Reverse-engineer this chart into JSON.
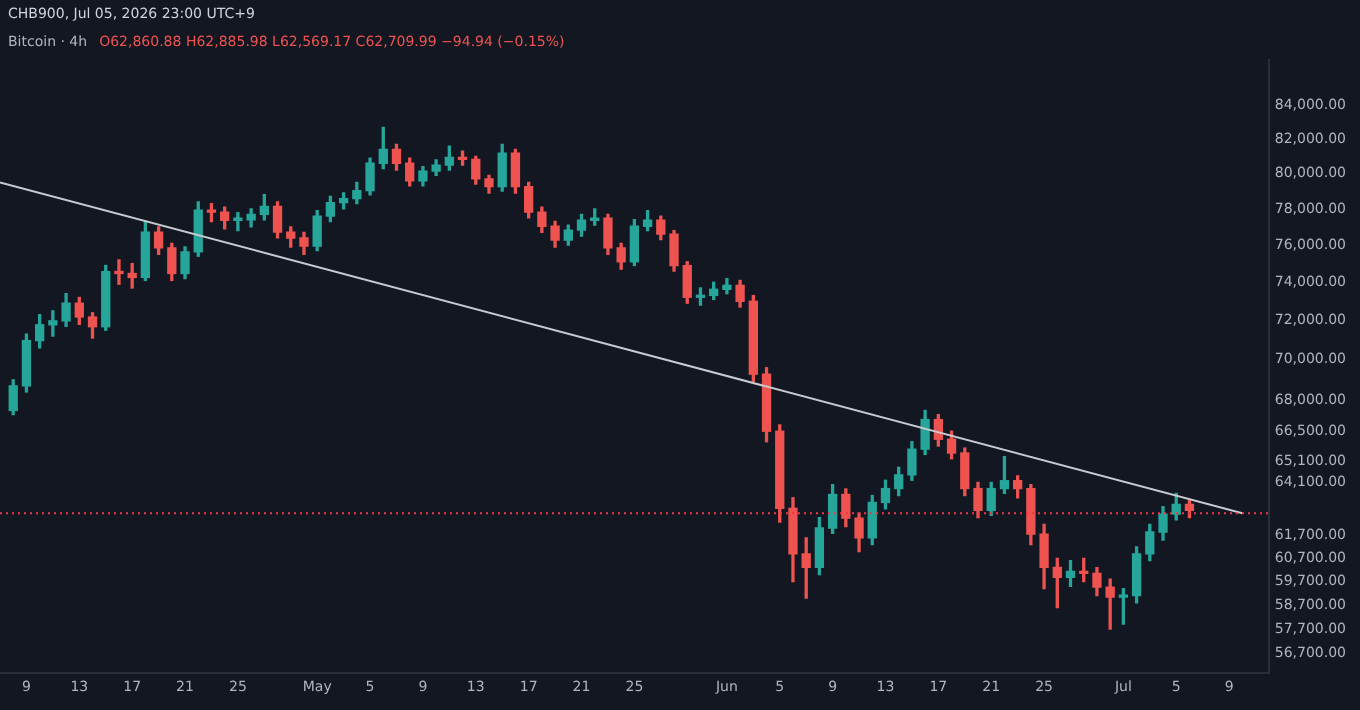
{
  "chart_data": {
    "type": "candlestick",
    "title": "Bitcoin · 4h",
    "subtitle": "O62,860.88 H62,885.98 L62,569.17 C62,709.99 −94.94 (−0.15%)",
    "annotations": [
      "CHB900, Jul 05, 2026 23:00 UTC+9"
    ],
    "series": [
      {
        "x": [
          "2026-04-08",
          "2026-04-09",
          "2026-04-10",
          "2026-04-11",
          "2026-04-12",
          "2026-04-13",
          "2026-04-14",
          "2026-04-15",
          "2026-04-16",
          "2026-04-17",
          "2026-04-18",
          "2026-04-19",
          "2026-04-20",
          "2026-04-21",
          "2026-04-22",
          "2026-04-23",
          "2026-04-24",
          "2026-04-25",
          "2026-04-26",
          "2026-04-27",
          "2026-04-28",
          "2026-04-29",
          "2026-04-30",
          "2026-05-01",
          "2026-05-02",
          "2026-05-03",
          "2026-05-04",
          "2026-05-05",
          "2026-05-06",
          "2026-05-07",
          "2026-05-08",
          "2026-05-09",
          "2026-05-10",
          "2026-05-11",
          "2026-05-12",
          "2026-05-13",
          "2026-05-14",
          "2026-05-15",
          "2026-05-16",
          "2026-05-17",
          "2026-05-18",
          "2026-05-19",
          "2026-05-20",
          "2026-05-21",
          "2026-05-22",
          "2026-05-23",
          "2026-05-24",
          "2026-05-25",
          "2026-05-26",
          "2026-05-27",
          "2026-05-28",
          "2026-05-29",
          "2026-05-30",
          "2026-05-31",
          "2026-06-01",
          "2026-06-02",
          "2026-06-03",
          "2026-06-04",
          "2026-06-05",
          "2026-06-06",
          "2026-06-07",
          "2026-06-08",
          "2026-06-09",
          "2026-06-10",
          "2026-06-11",
          "2026-06-12",
          "2026-06-13",
          "2026-06-14",
          "2026-06-15",
          "2026-06-16",
          "2026-06-17",
          "2026-06-18",
          "2026-06-19",
          "2026-06-20",
          "2026-06-21",
          "2026-06-22",
          "2026-06-23",
          "2026-06-24",
          "2026-06-25",
          "2026-06-26",
          "2026-06-27",
          "2026-06-28",
          "2026-06-29",
          "2026-06-30",
          "2026-07-01",
          "2026-07-02",
          "2026-07-03",
          "2026-07-04",
          "2026-07-05",
          "2026-07-06"
        ],
        "ohlc": [
          [
            67500,
            69000,
            67300,
            68700
          ],
          [
            68700,
            71300,
            68400,
            70970
          ],
          [
            70970,
            72300,
            70600,
            71780
          ],
          [
            71780,
            72500,
            71200,
            71980
          ],
          [
            71980,
            73400,
            71700,
            72900
          ],
          [
            72900,
            73200,
            71800,
            72180
          ],
          [
            72180,
            72400,
            71100,
            71680
          ],
          [
            71680,
            74900,
            71500,
            74570
          ],
          [
            74570,
            75200,
            73900,
            74470
          ],
          [
            74470,
            75000,
            73700,
            74260
          ],
          [
            74260,
            77300,
            74100,
            76710
          ],
          [
            76710,
            77000,
            75500,
            75850
          ],
          [
            75850,
            76100,
            74100,
            74470
          ],
          [
            74470,
            75900,
            74200,
            75630
          ],
          [
            75630,
            78400,
            75400,
            77930
          ],
          [
            77930,
            78300,
            77300,
            77820
          ],
          [
            77820,
            78100,
            76900,
            77370
          ],
          [
            77370,
            77800,
            76800,
            77400
          ],
          [
            77400,
            78000,
            77000,
            77700
          ],
          [
            77700,
            78800,
            77400,
            78140
          ],
          [
            78140,
            78400,
            76400,
            76710
          ],
          [
            76710,
            77000,
            75900,
            76390
          ],
          [
            76390,
            76700,
            75500,
            75950
          ],
          [
            75950,
            77900,
            75700,
            77600
          ],
          [
            77600,
            78700,
            77300,
            78360
          ],
          [
            78360,
            78900,
            78000,
            78580
          ],
          [
            78580,
            79500,
            78300,
            79030
          ],
          [
            79030,
            80900,
            78800,
            80600
          ],
          [
            80600,
            82700,
            80300,
            81400
          ],
          [
            81400,
            81700,
            80200,
            80600
          ],
          [
            80600,
            80900,
            79300,
            79590
          ],
          [
            79590,
            80400,
            79300,
            80150
          ],
          [
            80150,
            80800,
            79900,
            80490
          ],
          [
            80490,
            81600,
            80200,
            80940
          ],
          [
            80940,
            81300,
            80500,
            80830
          ],
          [
            80830,
            81000,
            79400,
            79700
          ],
          [
            79700,
            79900,
            78900,
            79260
          ],
          [
            79260,
            81700,
            79000,
            81180
          ],
          [
            81180,
            81400,
            78900,
            79260
          ],
          [
            79260,
            79500,
            77500,
            77820
          ],
          [
            77820,
            78100,
            76700,
            77040
          ],
          [
            77040,
            77300,
            75900,
            76280
          ],
          [
            76280,
            77100,
            76000,
            76820
          ],
          [
            76820,
            77700,
            76500,
            77370
          ],
          [
            77370,
            78000,
            77100,
            77480
          ],
          [
            77480,
            77700,
            75500,
            75850
          ],
          [
            75850,
            76100,
            74700,
            75100
          ],
          [
            75100,
            77400,
            74900,
            77040
          ],
          [
            77040,
            77900,
            76800,
            77370
          ],
          [
            77370,
            77600,
            76300,
            76600
          ],
          [
            76600,
            76800,
            74600,
            74890
          ],
          [
            74890,
            75100,
            72900,
            73210
          ],
          [
            73210,
            73700,
            72800,
            73310
          ],
          [
            73310,
            74000,
            73100,
            73630
          ],
          [
            73630,
            74200,
            73400,
            73840
          ],
          [
            73840,
            74100,
            72700,
            73000
          ],
          [
            73000,
            73300,
            68900,
            69280
          ],
          [
            69280,
            69600,
            66000,
            66500
          ],
          [
            66500,
            66800,
            62300,
            62920
          ],
          [
            62920,
            63400,
            59700,
            60900
          ],
          [
            60900,
            61600,
            59000,
            60310
          ],
          [
            60310,
            62500,
            60000,
            62040
          ],
          [
            62040,
            64000,
            61800,
            63550
          ],
          [
            63550,
            63800,
            62100,
            62480
          ],
          [
            62480,
            62700,
            61000,
            61600
          ],
          [
            61600,
            63500,
            61300,
            63190
          ],
          [
            63190,
            64200,
            62900,
            63820
          ],
          [
            63820,
            64800,
            63500,
            64450
          ],
          [
            64450,
            66000,
            64200,
            65650
          ],
          [
            65650,
            67500,
            65400,
            67060
          ],
          [
            67060,
            67300,
            65800,
            66120
          ],
          [
            66120,
            66500,
            65200,
            65470
          ],
          [
            65470,
            65700,
            63500,
            63820
          ],
          [
            63820,
            64100,
            62500,
            62830
          ],
          [
            62830,
            64100,
            62600,
            63820
          ],
          [
            63820,
            65300,
            63600,
            64180
          ],
          [
            64180,
            64400,
            63400,
            63820
          ],
          [
            63820,
            64000,
            61300,
            61770
          ],
          [
            61770,
            62200,
            59400,
            60310
          ],
          [
            60310,
            60700,
            58600,
            59880
          ],
          [
            59880,
            60600,
            59500,
            60140
          ],
          [
            60140,
            60700,
            59700,
            60050
          ],
          [
            60050,
            60300,
            59100,
            59460
          ],
          [
            59460,
            59800,
            57700,
            59040
          ],
          [
            59040,
            59400,
            57900,
            59100
          ],
          [
            59100,
            61200,
            58800,
            60900
          ],
          [
            60900,
            62200,
            60600,
            61860
          ],
          [
            61860,
            63000,
            61500,
            62660
          ],
          [
            62660,
            63600,
            62400,
            63100
          ],
          [
            63100,
            63300,
            62500,
            62830
          ]
        ],
        "colors": [
          "#26a69a",
          "#26a69a",
          "#26a69a",
          "#26a69a",
          "#26a69a",
          "#ef5350",
          "#ef5350",
          "#26a69a",
          "#ef5350",
          "#ef5350",
          "#26a69a",
          "#ef5350",
          "#ef5350",
          "#26a69a",
          "#26a69a",
          "#ef5350",
          "#ef5350",
          "#26a69a",
          "#26a69a",
          "#26a69a",
          "#ef5350",
          "#ef5350",
          "#ef5350",
          "#26a69a",
          "#26a69a",
          "#26a69a",
          "#26a69a",
          "#26a69a",
          "#26a69a",
          "#ef5350",
          "#ef5350",
          "#26a69a",
          "#26a69a",
          "#26a69a",
          "#ef5350",
          "#ef5350",
          "#ef5350",
          "#26a69a",
          "#ef5350",
          "#ef5350",
          "#ef5350",
          "#ef5350",
          "#26a69a",
          "#26a69a",
          "#26a69a",
          "#ef5350",
          "#ef5350",
          "#26a69a",
          "#26a69a",
          "#ef5350",
          "#ef5350",
          "#ef5350",
          "#26a69a",
          "#26a69a",
          "#26a69a",
          "#ef5350",
          "#ef5350",
          "#ef5350",
          "#ef5350",
          "#ef5350",
          "#ef5350",
          "#26a69a",
          "#26a69a",
          "#ef5350",
          "#ef5350",
          "#26a69a",
          "#26a69a",
          "#26a69a",
          "#26a69a",
          "#26a69a",
          "#ef5350",
          "#ef5350",
          "#ef5350",
          "#ef5350",
          "#26a69a",
          "#26a69a",
          "#ef5350",
          "#ef5350",
          "#ef5350",
          "#ef5350",
          "#26a69a",
          "#ef5350",
          "#ef5350",
          "#ef5350",
          "#26a69a",
          "#26a69a",
          "#26a69a",
          "#26a69a",
          "#26a69a",
          "#ef5350"
        ]
      },
      {
        "type": "line",
        "x": [
          "2026-04-07",
          "2026-07-10"
        ],
        "values": [
          79500,
          62700
        ],
        "color": "#c8cad0"
      }
    ],
    "ref_lines": [
      {
        "axis": "y",
        "value": 62700,
        "color": "#f23645",
        "line_style": "dotted"
      }
    ],
    "xlim": [
      "2026-04-07",
      "2026-07-12"
    ],
    "xticks": [
      {
        "value": "2026-04-09",
        "label": "9"
      },
      {
        "value": "2026-04-13",
        "label": "13"
      },
      {
        "value": "2026-04-17",
        "label": "17"
      },
      {
        "value": "2026-04-21",
        "label": "21"
      },
      {
        "value": "2026-04-25",
        "label": "25"
      },
      {
        "value": "2026-05-01",
        "label": "May"
      },
      {
        "value": "2026-05-05",
        "label": "5"
      },
      {
        "value": "2026-05-09",
        "label": "9"
      },
      {
        "value": "2026-05-13",
        "label": "13"
      },
      {
        "value": "2026-05-17",
        "label": "17"
      },
      {
        "value": "2026-05-21",
        "label": "21"
      },
      {
        "value": "2026-05-25",
        "label": "25"
      },
      {
        "value": "2026-06-01",
        "label": "Jun"
      },
      {
        "value": "2026-06-05",
        "label": "5"
      },
      {
        "value": "2026-06-09",
        "label": "9"
      },
      {
        "value": "2026-06-13",
        "label": "13"
      },
      {
        "value": "2026-06-17",
        "label": "17"
      },
      {
        "value": "2026-06-21",
        "label": "21"
      },
      {
        "value": "2026-06-25",
        "label": "25"
      },
      {
        "value": "2026-07-01",
        "label": "Jul"
      },
      {
        "value": "2026-07-05",
        "label": "5"
      },
      {
        "value": "2026-07-09",
        "label": "9"
      }
    ],
    "ylim": [
      55900,
      86800
    ],
    "log": "y",
    "yticks": [
      {
        "value": 84000,
        "label": "84,000.00"
      },
      {
        "value": 82000,
        "label": "82,000.00"
      },
      {
        "value": 80000,
        "label": "80,000.00"
      },
      {
        "value": 78000,
        "label": "78,000.00"
      },
      {
        "value": 76000,
        "label": "76,000.00"
      },
      {
        "value": 74000,
        "label": "74,000.00"
      },
      {
        "value": 72000,
        "label": "72,000.00"
      },
      {
        "value": 70000,
        "label": "70,000.00"
      },
      {
        "value": 68000,
        "label": "68,000.00"
      },
      {
        "value": 66500,
        "label": "66,500.00"
      },
      {
        "value": 65100,
        "label": "65,100.00"
      },
      {
        "value": 64100,
        "label": "64,100.00"
      },
      {
        "value": 61700,
        "label": "61,700.00"
      },
      {
        "value": 60700,
        "label": "60,700.00"
      },
      {
        "value": 59700,
        "label": "59,700.00"
      },
      {
        "value": 58700,
        "label": "58,700.00"
      },
      {
        "value": 57700,
        "label": "57,700.00"
      },
      {
        "value": 56700,
        "label": "56,700.00"
      }
    ],
    "grid": false,
    "legend": false
  }
}
